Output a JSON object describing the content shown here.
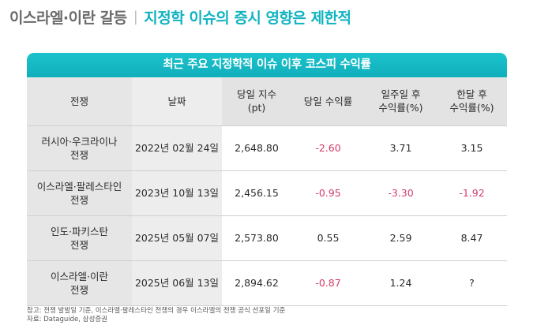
{
  "headline": {
    "topic": "이스라엘·이란 갈등",
    "separator": "|",
    "main": "지정학 이슈의 증시 영향은 제한적"
  },
  "table": {
    "title": "최근 주요 지정학적 이슈 이후 코스피 수익률",
    "headers": [
      [
        "전쟁"
      ],
      [
        "날짜"
      ],
      [
        "당일 지수",
        "(pt)"
      ],
      [
        "당일 수익률"
      ],
      [
        "일주일 후",
        "수익률(%)"
      ],
      [
        "한달 후",
        "수익률(%)"
      ]
    ],
    "rows": [
      {
        "war": [
          "러시아·우크라이나",
          "전쟁"
        ],
        "date": "2022년 02월 24일",
        "index": "2,648.80",
        "day_return": "-2.60",
        "week_return": "3.71",
        "month_return": "3.15"
      },
      {
        "war": [
          "이스라엘·팔레스타인",
          "전쟁"
        ],
        "date": "2023년 10월 13일",
        "index": "2,456.15",
        "day_return": "-0.95",
        "week_return": "-3.30",
        "month_return": "-1.92"
      },
      {
        "war": [
          "인도·파키스탄",
          "전쟁"
        ],
        "date": "2025년 05월 07일",
        "index": "2,573.80",
        "day_return": "0.55",
        "week_return": "2.59",
        "month_return": "8.47"
      },
      {
        "war": [
          "이스라엘·이란",
          "전쟁"
        ],
        "date": "2025년 06월 13일",
        "index": "2,894.62",
        "day_return": "-0.87",
        "week_return": "1.24",
        "month_return": "?"
      }
    ]
  },
  "notes": {
    "note": "참고: 전쟁 발발일 기준, 이스라엘·팔레스타인 전쟁의 경우 이스라엘의 전쟁 공식 선포일 기준",
    "source": "자료: Dataguide, 삼성증권"
  },
  "colors": {
    "accent": "#10b3c0",
    "negative": "#d23c6a"
  }
}
